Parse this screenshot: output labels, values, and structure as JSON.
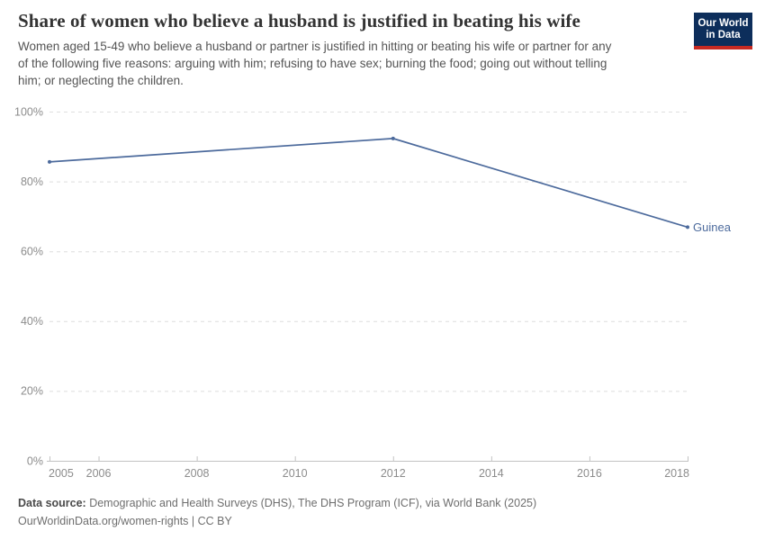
{
  "header": {
    "title": "Share of women who believe a husband is justified in beating his wife",
    "subtitle_lines": [
      "Women aged 15-49 who believe a husband or partner is justified in hitting or beating his wife or partner for any",
      "of the following five reasons: arguing with him; refusing to have sex; burning the food; going out without telling",
      "him; or neglecting the children."
    ],
    "logo": {
      "line1": "Our World",
      "line2": "in Data"
    }
  },
  "chart_data": {
    "type": "line",
    "title": "Share of women who believe a husband is justified in beating his wife",
    "xlabel": "",
    "ylabel": "",
    "xlim": [
      2005,
      2018
    ],
    "ylim": [
      0,
      100
    ],
    "x_ticks": [
      2005,
      2006,
      2008,
      2010,
      2012,
      2014,
      2016,
      2018
    ],
    "y_ticks": [
      0,
      20,
      40,
      60,
      80,
      100
    ],
    "y_tick_suffix": "%",
    "grid": "horizontal-dashed",
    "legend_position": "end-of-line-label",
    "series": [
      {
        "name": "Guinea",
        "color": "#4C6A9C",
        "points": [
          {
            "year": 2005,
            "value": 85.6
          },
          {
            "year": 2012,
            "value": 92.3
          },
          {
            "year": 2018,
            "value": 66.9
          }
        ]
      }
    ]
  },
  "footer": {
    "source_label": "Data source:",
    "source_text": " Demographic and Health Surveys (DHS), The DHS Program (ICF), via World Bank (2025)",
    "note": "OurWorldinData.org/women-rights | CC BY"
  },
  "colors": {
    "line": "#4C6A9C",
    "grid": "#dedede",
    "axis": "#c3c3c3",
    "tick_text": "#8c8c8c",
    "title": "#333333",
    "subtitle": "#545454",
    "footer": "#6e6e6e",
    "footer_label": "#4a4a4a",
    "logo_bg": "#0D2E5B",
    "logo_accent": "#C72A22"
  }
}
